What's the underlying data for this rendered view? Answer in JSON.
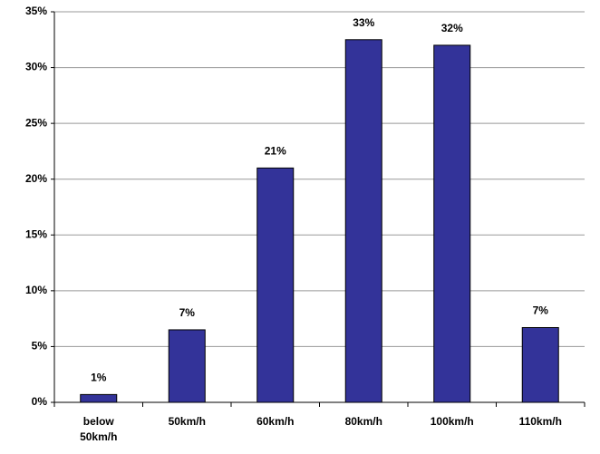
{
  "chart_data": {
    "type": "bar",
    "categories": [
      "below 50km/h",
      "50km/h",
      "60km/h",
      "80km/h",
      "100km/h",
      "110km/h"
    ],
    "values": [
      0.7,
      6.5,
      21,
      32.5,
      32,
      6.7
    ],
    "value_labels": [
      "1%",
      "7%",
      "21%",
      "33%",
      "32%",
      "7%"
    ],
    "color": "#333399",
    "ylim": [
      0,
      35
    ],
    "yticks": [
      {
        "value": 0,
        "label": "0%"
      },
      {
        "value": 5,
        "label": "5%"
      },
      {
        "value": 10,
        "label": "10%"
      },
      {
        "value": 15,
        "label": "15%"
      },
      {
        "value": 20,
        "label": "20%"
      },
      {
        "value": 25,
        "label": "25%"
      },
      {
        "value": 30,
        "label": "30%"
      },
      {
        "value": 35,
        "label": "35%"
      }
    ],
    "grid": true
  }
}
